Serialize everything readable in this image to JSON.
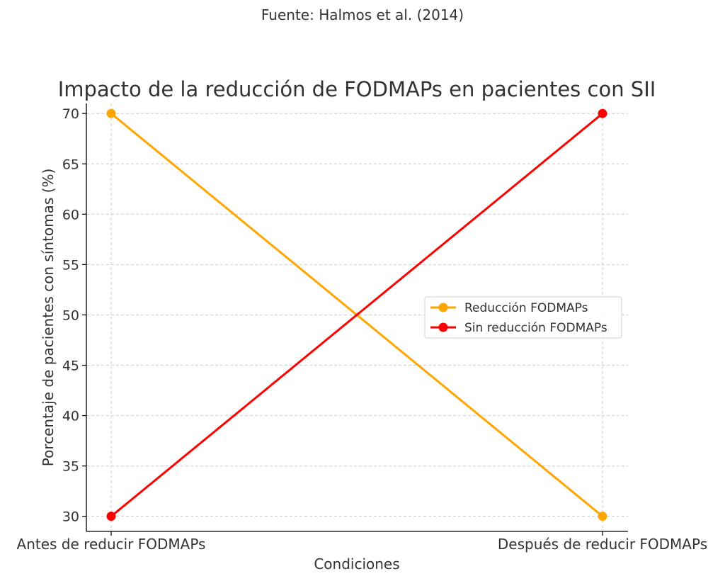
{
  "source_note": "Fuente: Halmos et al. (2014)",
  "chart_data": {
    "type": "line",
    "title": "Impacto de la reducción de FODMAPs en pacientes con SII",
    "xlabel": "Condiciones",
    "ylabel": "Porcentaje de pacientes con síntomas (%)",
    "categories": [
      "Antes de reducir FODMAPs",
      "Después de reducir FODMAPs"
    ],
    "yticks": [
      30,
      35,
      40,
      45,
      50,
      55,
      60,
      65,
      70
    ],
    "ylim": [
      28.5,
      71.0
    ],
    "grid": true,
    "legend_position": "center-right",
    "series": [
      {
        "name": "Reducción FODMAPs",
        "values": [
          70,
          30
        ],
        "color": "#FFA500",
        "marker": "circle"
      },
      {
        "name": "Sin reducción FODMAPs",
        "values": [
          30,
          70
        ],
        "color": "#FF0000",
        "marker": "circle"
      }
    ]
  }
}
